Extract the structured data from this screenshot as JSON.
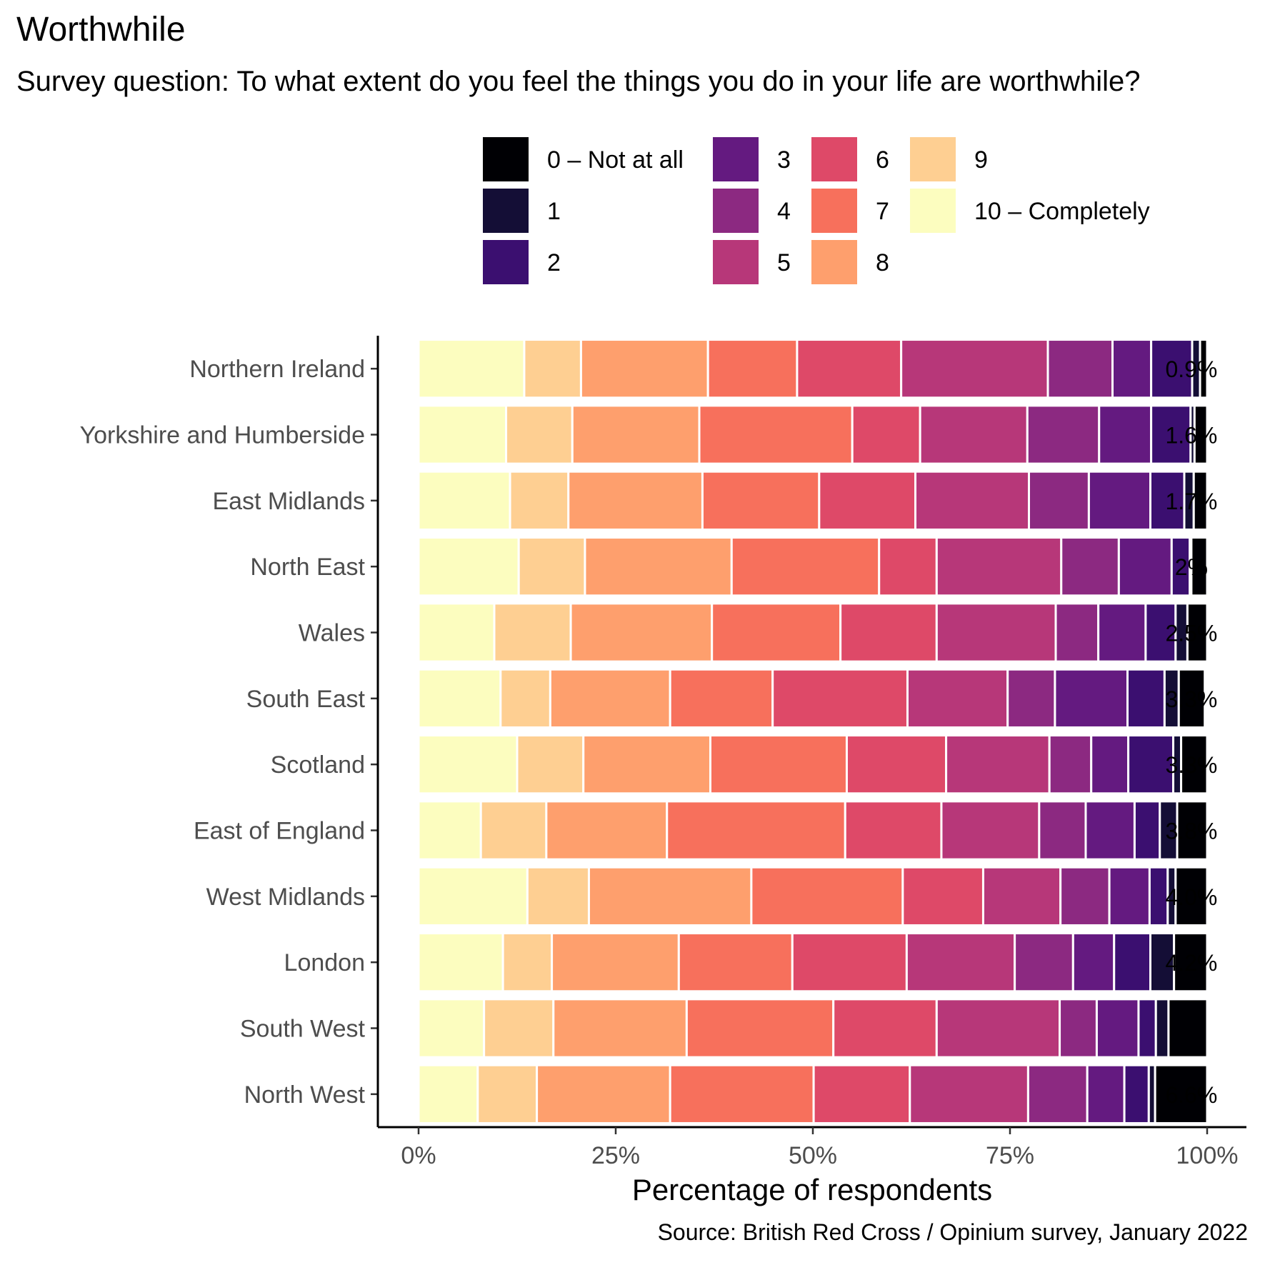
{
  "title": "Worthwhile",
  "subtitle": "Survey question: To what extent do you feel the things you do in your life are worthwhile?",
  "source": "Source: British Red Cross / Opinium survey, January 2022",
  "chart_data": {
    "type": "bar",
    "orientation": "horizontal",
    "stacked": true,
    "xlabel": "Percentage of respondents",
    "ylabel": "",
    "xlim": [
      0,
      100
    ],
    "x_ticks": [
      "0%",
      "25%",
      "50%",
      "75%",
      "100%"
    ],
    "x_tick_values": [
      0,
      25,
      50,
      75,
      100
    ],
    "legend_position": "top",
    "legend_entries": [
      "0 – Not at all",
      "1",
      "2",
      "3",
      "4",
      "5",
      "6",
      "7",
      "8",
      "9",
      "10 – Completely"
    ],
    "colors": [
      "#000004",
      "#140E36",
      "#3B0F70",
      "#641A80",
      "#8C2981",
      "#B73779",
      "#DE4968",
      "#F7705C",
      "#FE9F6D",
      "#FECF92",
      "#FCFDBF"
    ],
    "categories": [
      "Northern Ireland",
      "Yorkshire and Humberside",
      "East Midlands",
      "North East",
      "Wales",
      "South East",
      "Scotland",
      "East of England",
      "West Midlands",
      "London",
      "South West",
      "North West"
    ],
    "data_labels": [
      "0.9%",
      "1.6%",
      "1.7%",
      "2%",
      "2.5%",
      "3.3%",
      "3.3%",
      "3.8%",
      "4.0%",
      "4.2%",
      "",
      "6.6%"
    ],
    "series": [
      {
        "name": "0 – Not at all",
        "values": [
          0.9,
          1.6,
          1.7,
          2.0,
          2.5,
          3.3,
          3.3,
          3.8,
          4.0,
          4.2,
          4.9,
          6.6
        ]
      },
      {
        "name": "1",
        "values": [
          1.0,
          0.5,
          1.2,
          0.2,
          1.5,
          1.8,
          1.0,
          2.2,
          1.0,
          3.0,
          1.6,
          0.8
        ]
      },
      {
        "name": "2",
        "values": [
          5.2,
          5.0,
          4.3,
          2.3,
          3.8,
          4.7,
          5.7,
          3.2,
          2.3,
          4.6,
          2.2,
          3.1
        ]
      },
      {
        "name": "3",
        "values": [
          4.9,
          6.6,
          7.8,
          6.7,
          6.0,
          9.2,
          4.7,
          6.2,
          5.1,
          5.2,
          5.3,
          4.7
        ]
      },
      {
        "name": "4",
        "values": [
          8.2,
          9.1,
          7.6,
          7.3,
          5.4,
          6.0,
          5.3,
          5.9,
          6.2,
          7.4,
          4.7,
          7.5
        ]
      },
      {
        "name": "5",
        "values": [
          18.6,
          13.6,
          14.4,
          15.8,
          15.1,
          12.7,
          13.1,
          12.4,
          9.8,
          13.7,
          15.6,
          15.0
        ]
      },
      {
        "name": "6",
        "values": [
          13.2,
          8.6,
          12.2,
          7.3,
          12.2,
          17.1,
          12.6,
          12.2,
          10.2,
          14.5,
          13.1,
          12.2
        ]
      },
      {
        "name": "7",
        "values": [
          11.3,
          19.4,
          14.8,
          18.7,
          16.3,
          13.0,
          17.3,
          22.6,
          19.2,
          14.4,
          18.6,
          18.2
        ]
      },
      {
        "name": "8",
        "values": [
          16.1,
          16.1,
          17.0,
          18.6,
          17.9,
          15.2,
          16.1,
          15.3,
          20.6,
          16.1,
          16.9,
          16.9
        ]
      },
      {
        "name": "9",
        "values": [
          7.2,
          8.4,
          7.4,
          8.4,
          9.7,
          6.3,
          8.4,
          8.3,
          7.8,
          6.2,
          8.8,
          7.5
        ]
      },
      {
        "name": "10 – Completely",
        "values": [
          13.4,
          11.1,
          11.6,
          12.7,
          9.6,
          10.4,
          12.5,
          7.9,
          13.8,
          10.7,
          8.3,
          7.5
        ]
      }
    ]
  }
}
